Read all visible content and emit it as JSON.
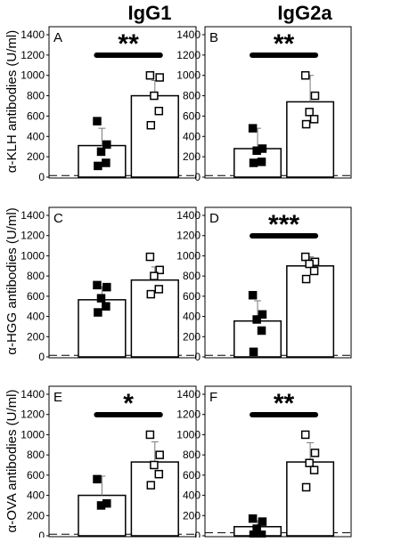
{
  "column_titles": [
    "IgG1",
    "IgG2a"
  ],
  "row_ylabels": [
    "α-KLH antibodies (U/ml)",
    "α-HGG antibodies (U/ml)",
    "α-OVA antibodies (U/ml)"
  ],
  "chart_data": [
    {
      "type": "bar",
      "panel_label": "A",
      "row": 0,
      "col": 0,
      "categories": [
        "",
        ""
      ],
      "values": [
        310,
        800
      ],
      "errors": [
        170,
        150
      ],
      "points": [
        [
          550,
          320,
          250,
          140,
          110
        ],
        [
          1000,
          980,
          800,
          650,
          510
        ]
      ],
      "markers": [
        "filled-square",
        "open-square"
      ],
      "significance": "**",
      "cutoff": 15,
      "ylim": [
        0,
        1400
      ],
      "yticks": [
        "0",
        "200",
        "400",
        "600",
        "800",
        "1000",
        "1200",
        "1400"
      ],
      "grid": false
    },
    {
      "type": "bar",
      "panel_label": "B",
      "row": 0,
      "col": 1,
      "categories": [
        "",
        ""
      ],
      "values": [
        280,
        740
      ],
      "errors": [
        200,
        260
      ],
      "points": [
        [
          480,
          280,
          260,
          150,
          140
        ],
        [
          1000,
          800,
          640,
          570,
          520
        ]
      ],
      "markers": [
        "filled-square",
        "open-square"
      ],
      "significance": "**",
      "cutoff": 15,
      "ylim": [
        0,
        1400
      ],
      "yticks": [
        "0",
        "200",
        "400",
        "600",
        "800",
        "1000",
        "1200",
        "1400"
      ],
      "grid": false
    },
    {
      "type": "bar",
      "panel_label": "C",
      "row": 1,
      "col": 0,
      "categories": [
        "",
        ""
      ],
      "values": [
        565,
        760
      ],
      "errors": [
        130,
        130
      ],
      "points": [
        [
          710,
          690,
          580,
          500,
          440
        ],
        [
          990,
          860,
          800,
          670,
          620
        ]
      ],
      "markers": [
        "filled-square",
        "open-square"
      ],
      "significance": "",
      "cutoff": 15,
      "ylim": [
        0,
        1400
      ],
      "yticks": [
        "0",
        "200",
        "400",
        "600",
        "800",
        "1000",
        "1200",
        "1400"
      ],
      "grid": false
    },
    {
      "type": "bar",
      "panel_label": "D",
      "row": 1,
      "col": 1,
      "categories": [
        "",
        ""
      ],
      "values": [
        355,
        900
      ],
      "errors": [
        200,
        90
      ],
      "points": [
        [
          610,
          420,
          370,
          260,
          50
        ],
        [
          990,
          940,
          920,
          850,
          770
        ]
      ],
      "markers": [
        "filled-square",
        "open-square"
      ],
      "significance": "***",
      "cutoff": 15,
      "ylim": [
        0,
        1400
      ],
      "yticks": [
        "0",
        "200",
        "400",
        "600",
        "800",
        "1000",
        "1200",
        "1400"
      ],
      "grid": false
    },
    {
      "type": "bar",
      "panel_label": "E",
      "row": 2,
      "col": 0,
      "categories": [
        "",
        ""
      ],
      "values": [
        400,
        730
      ],
      "errors": [
        190,
        200
      ],
      "points": [
        [
          560,
          320,
          300
        ],
        [
          1000,
          800,
          700,
          610,
          500
        ]
      ],
      "markers": [
        "filled-square",
        "open-square"
      ],
      "significance": "*",
      "cutoff": 15,
      "ylim": [
        0,
        1400
      ],
      "yticks": [
        "0",
        "200",
        "400",
        "600",
        "800",
        "1000",
        "1200",
        "1400"
      ],
      "grid": false
    },
    {
      "type": "bar",
      "panel_label": "F",
      "row": 2,
      "col": 1,
      "categories": [
        "",
        ""
      ],
      "values": [
        90,
        730
      ],
      "errors": [
        60,
        190
      ],
      "points": [
        [
          170,
          140,
          70,
          10,
          10
        ],
        [
          1000,
          820,
          720,
          650,
          480
        ]
      ],
      "markers": [
        "filled-square",
        "open-square"
      ],
      "significance": "**",
      "cutoff": 30,
      "ylim": [
        0,
        1400
      ],
      "yticks": [
        "0",
        "200",
        "400",
        "600",
        "800",
        "1000",
        "1200",
        "1400"
      ],
      "grid": false
    }
  ]
}
